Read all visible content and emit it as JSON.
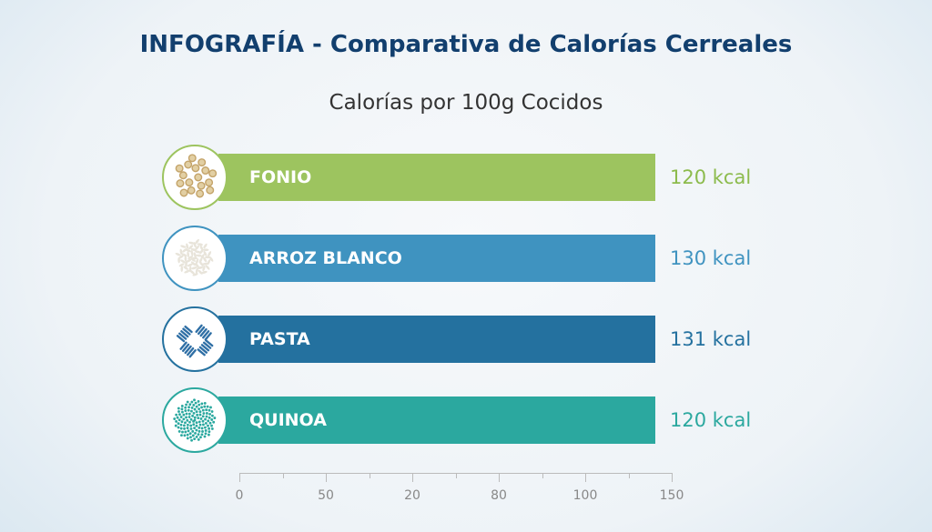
{
  "chart_data": {
    "type": "bar",
    "title": "INFOGRAFÍA - Comparativa de Calorías Cerreales",
    "subtitle": "Calorías por 100g Cocidos",
    "categories": [
      "FONIO",
      "ARROZ BLANCO",
      "PASTA",
      "QUINOA"
    ],
    "values": [
      120,
      130,
      131,
      120
    ],
    "value_labels": [
      "120 kcal",
      "130 kcal",
      "131 kcal",
      "120 kcal"
    ],
    "colors": [
      "#9dc45f",
      "#3f93c0",
      "#24719f",
      "#2ba89f"
    ],
    "label_colors": [
      "#8cbb4c",
      "#3f93c0",
      "#24719f",
      "#2ba89f"
    ],
    "icons": [
      "fonio-grains-icon",
      "rice-grains-icon",
      "pasta-fusilli-icon",
      "quinoa-seeds-icon"
    ],
    "x_tick_labels": [
      "0",
      "50",
      "20",
      "80",
      "100",
      "150"
    ],
    "xlim": [
      0,
      150
    ],
    "xlabel": "",
    "ylabel": ""
  }
}
